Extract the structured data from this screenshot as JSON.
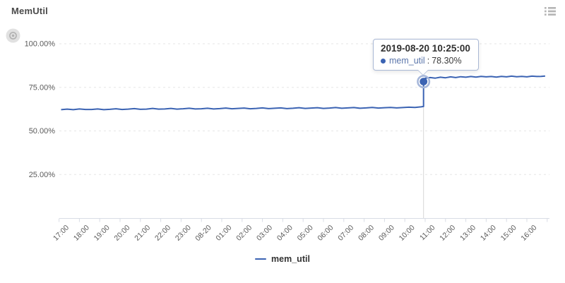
{
  "header": {
    "title": "MemUtil"
  },
  "toolbar": {
    "list_icon": "list-menu-icon",
    "watermark_icon": "eye-watermark-icon"
  },
  "colors": {
    "line": "#3b63b3",
    "highlight_halo": "#a6b7da",
    "grid": "#e5e5e5",
    "axis": "#d8dce5",
    "axis_label": "#5a5a5a",
    "tooltip_border": "#a9b8d5",
    "pointer_line": "#d6d6d6",
    "icon_gray": "#b5b5b5"
  },
  "tooltip": {
    "title": "2019-08-20 10:25:00",
    "series": "mem_util",
    "separator": ":",
    "value": "78.30%"
  },
  "legend": {
    "items": [
      {
        "label": "mem_util",
        "color": "#3b63b3"
      }
    ]
  },
  "chart_data": {
    "type": "line",
    "title": "MemUtil",
    "xlabel": "",
    "ylabel": "",
    "ylim": [
      0,
      100
    ],
    "grid": "horizontal dashed",
    "legend_position": "bottom center",
    "x_unit": "hours offset from 2019-08-19 17:00",
    "x_labels": [
      "17:00",
      "18:00",
      "19:00",
      "20:00",
      "21:00",
      "22:00",
      "23:00",
      "08-20",
      "01:00",
      "02:00",
      "03:00",
      "04:00",
      "05:00",
      "06:00",
      "07:00",
      "08:00",
      "09:00",
      "10:00",
      "11:00",
      "12:00",
      "13:00",
      "14:00",
      "15:00",
      "16:00"
    ],
    "y_tick_labels": [
      "25.00%",
      "50.00%",
      "75.00%",
      "100.00%"
    ],
    "y_tick_values": [
      25,
      50,
      75,
      100
    ],
    "highlight_point": {
      "x_hours": 17.42,
      "time": "2019-08-20 10:25:00",
      "value": 78.3,
      "series": "mem_util"
    },
    "series": [
      {
        "name": "mem_util",
        "color": "#3b63b3",
        "points": [
          [
            -0.4,
            62.2
          ],
          [
            -0.1,
            62.5
          ],
          [
            0.2,
            62.2
          ],
          [
            0.5,
            62.6
          ],
          [
            0.8,
            62.3
          ],
          [
            1.1,
            62.3
          ],
          [
            1.4,
            62.6
          ],
          [
            1.7,
            62.2
          ],
          [
            2.0,
            62.4
          ],
          [
            2.3,
            62.7
          ],
          [
            2.6,
            62.3
          ],
          [
            2.9,
            62.5
          ],
          [
            3.2,
            62.8
          ],
          [
            3.5,
            62.4
          ],
          [
            3.8,
            62.5
          ],
          [
            4.1,
            62.9
          ],
          [
            4.4,
            62.5
          ],
          [
            4.7,
            62.6
          ],
          [
            5.0,
            62.9
          ],
          [
            5.3,
            62.5
          ],
          [
            5.6,
            62.7
          ],
          [
            5.9,
            63.0
          ],
          [
            6.2,
            62.6
          ],
          [
            6.5,
            62.7
          ],
          [
            6.8,
            63.0
          ],
          [
            7.1,
            62.6
          ],
          [
            7.4,
            62.8
          ],
          [
            7.7,
            63.1
          ],
          [
            8.0,
            62.7
          ],
          [
            8.3,
            62.9
          ],
          [
            8.6,
            63.1
          ],
          [
            8.9,
            62.7
          ],
          [
            9.2,
            62.9
          ],
          [
            9.5,
            63.2
          ],
          [
            9.8,
            62.8
          ],
          [
            10.1,
            63.0
          ],
          [
            10.4,
            63.2
          ],
          [
            10.7,
            62.8
          ],
          [
            11.0,
            63.0
          ],
          [
            11.3,
            63.3
          ],
          [
            11.6,
            62.9
          ],
          [
            11.9,
            63.1
          ],
          [
            12.2,
            63.3
          ],
          [
            12.5,
            62.9
          ],
          [
            12.8,
            63.1
          ],
          [
            13.1,
            63.4
          ],
          [
            13.4,
            63.0
          ],
          [
            13.7,
            63.2
          ],
          [
            14.0,
            63.4
          ],
          [
            14.3,
            63.0
          ],
          [
            14.6,
            63.2
          ],
          [
            14.9,
            63.5
          ],
          [
            15.2,
            63.1
          ],
          [
            15.5,
            63.3
          ],
          [
            15.8,
            63.5
          ],
          [
            16.1,
            63.2
          ],
          [
            16.4,
            63.4
          ],
          [
            16.7,
            63.6
          ],
          [
            17.0,
            63.5
          ],
          [
            17.3,
            63.8
          ],
          [
            17.42,
            64.0
          ],
          [
            17.42,
            78.3
          ],
          [
            17.5,
            80.2
          ],
          [
            17.75,
            80.6
          ],
          [
            18.0,
            80.3
          ],
          [
            18.25,
            80.8
          ],
          [
            18.5,
            80.5
          ],
          [
            18.75,
            81.0
          ],
          [
            19.0,
            80.6
          ],
          [
            19.25,
            81.1
          ],
          [
            19.5,
            80.8
          ],
          [
            19.75,
            81.2
          ],
          [
            20.0,
            80.9
          ],
          [
            20.25,
            81.3
          ],
          [
            20.5,
            81.0
          ],
          [
            20.75,
            81.2
          ],
          [
            21.0,
            80.9
          ],
          [
            21.25,
            81.3
          ],
          [
            21.5,
            81.0
          ],
          [
            21.75,
            81.4
          ],
          [
            22.0,
            81.1
          ],
          [
            22.25,
            81.3
          ],
          [
            22.5,
            81.0
          ],
          [
            22.75,
            81.4
          ],
          [
            23.0,
            81.2
          ],
          [
            23.2,
            81.3
          ],
          [
            23.4,
            81.5
          ]
        ]
      }
    ]
  }
}
